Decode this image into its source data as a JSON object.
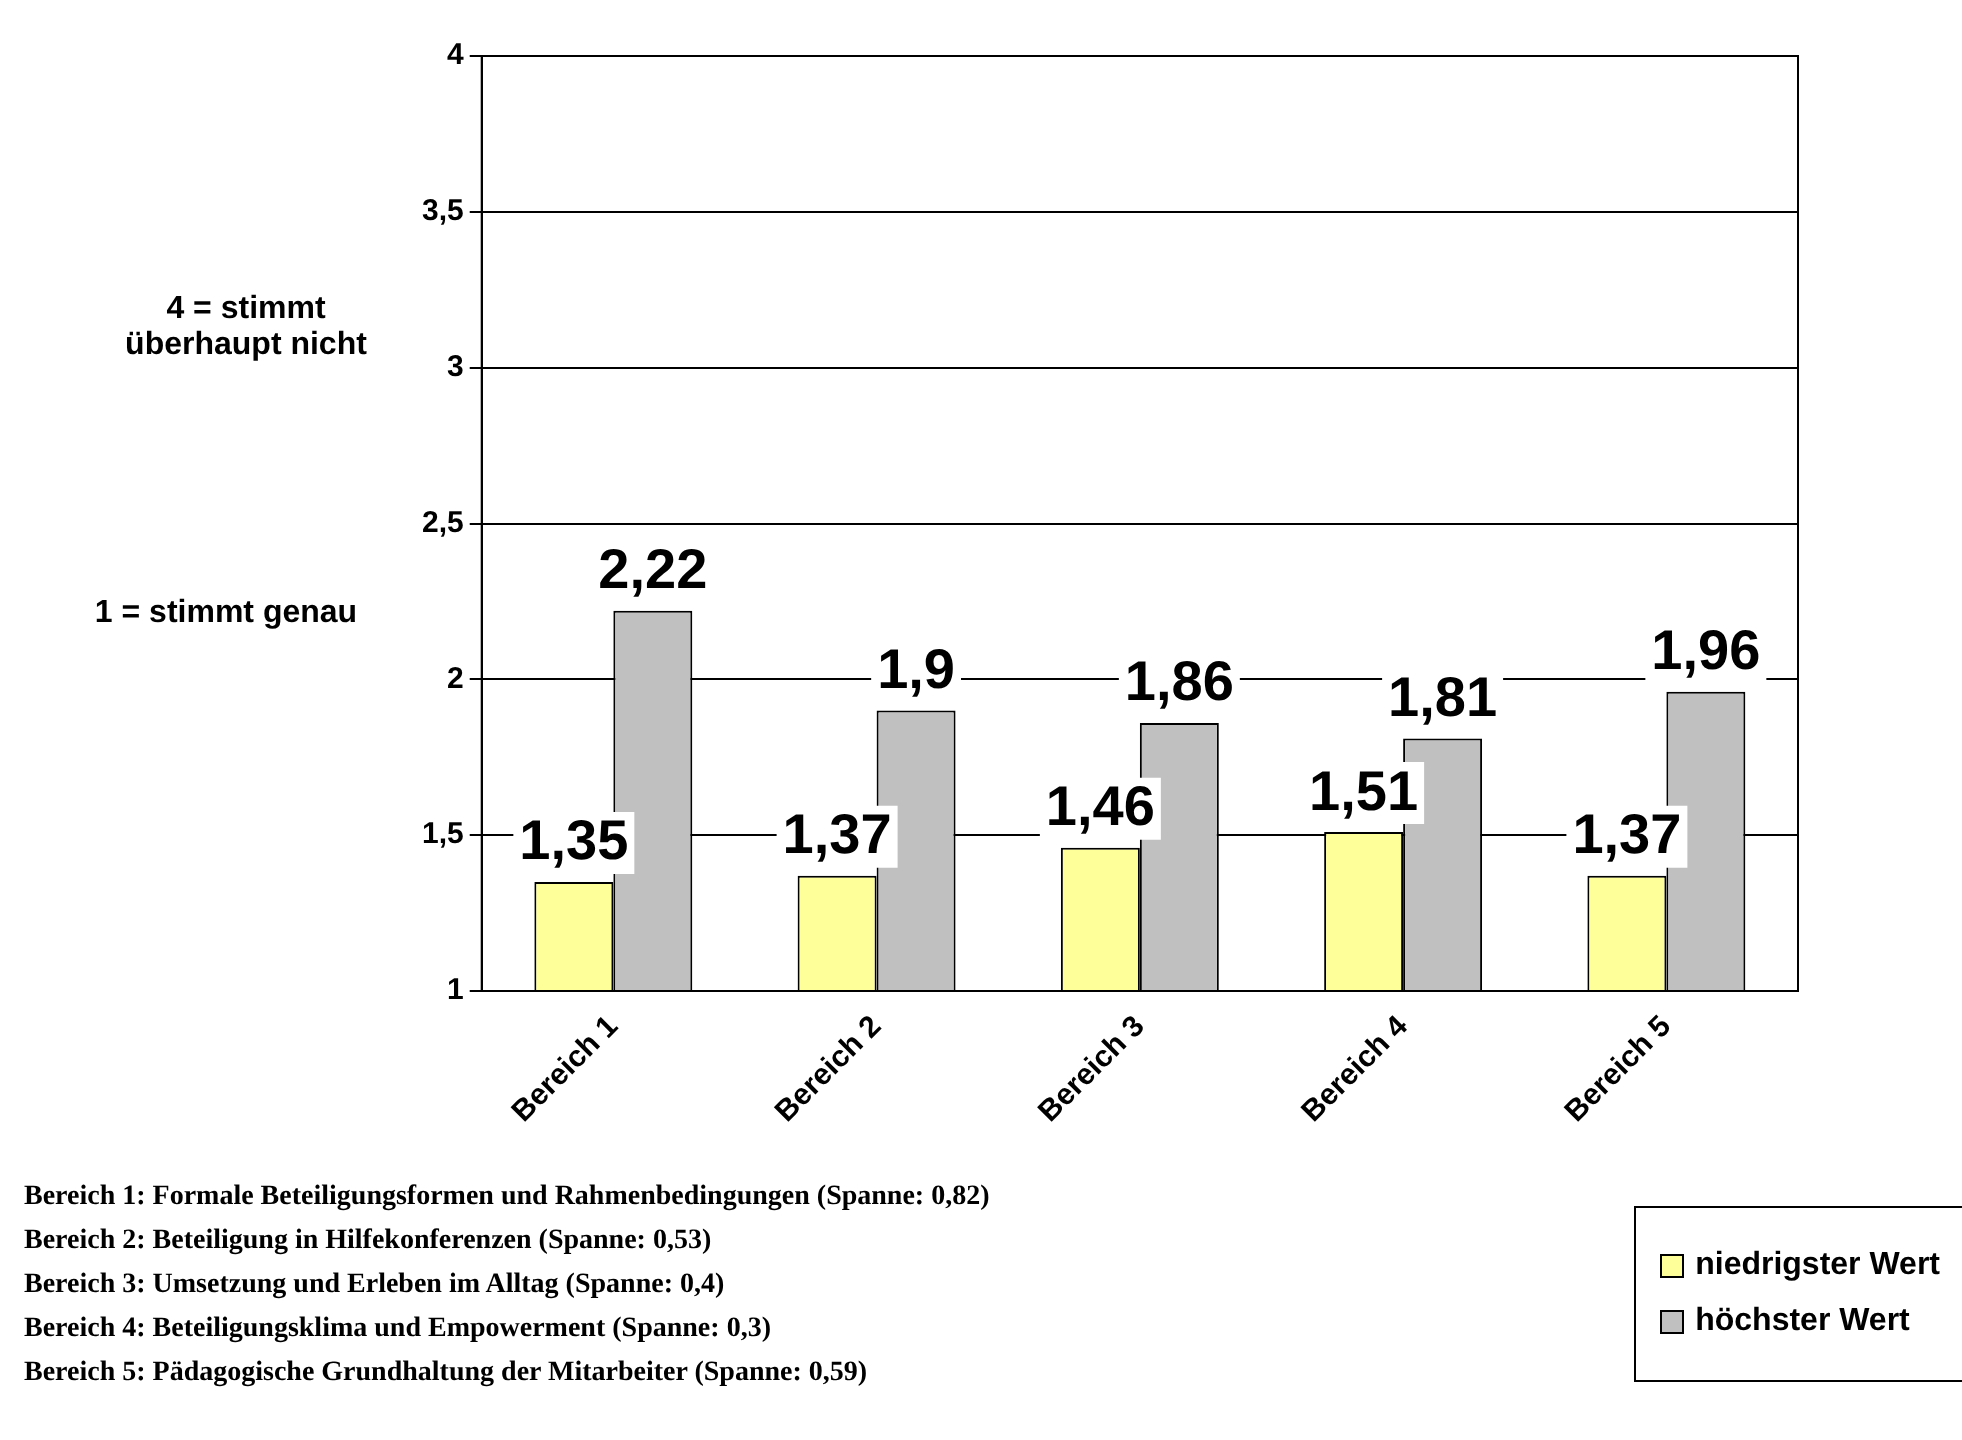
{
  "chart_data": {
    "type": "bar",
    "categories": [
      "Bereich 1",
      "Bereich 2",
      "Bereich 3",
      "Bereich 4",
      "Bereich 5"
    ],
    "series": [
      {
        "name": "niedrigster Wert",
        "color": "#ffff99",
        "values": [
          1.35,
          1.37,
          1.46,
          1.51,
          1.37
        ],
        "value_labels": [
          "1,35",
          "1,37",
          "1,46",
          "1,51",
          "1,37"
        ]
      },
      {
        "name": "höchster Wert",
        "color": "#c0c0c0",
        "values": [
          2.22,
          1.9,
          1.86,
          1.81,
          1.96
        ],
        "value_labels": [
          "2,22",
          "1,9",
          "1,86",
          "1,81",
          "1,96"
        ]
      }
    ],
    "ylim": [
      1,
      4
    ],
    "yticks": [
      1,
      {
        "value": 1.5,
        "label": "1,5"
      },
      2,
      {
        "value": 2.5,
        "label": "2,5"
      },
      3,
      {
        "value": 3.5,
        "label": "3,5"
      },
      4
    ],
    "grid": "y",
    "legend": "bottom right",
    "annotations": [
      "4 = stimmt überhaupt nicht",
      "1 = stimmt genau",
      "Bereich 1: Formale Beteiligungsformen und Rahmenbedingungen (Spanne: 0,82)",
      "Bereich 2: Beteiligung in Hilfekonferenzen (Spanne: 0,53)",
      "Bereich 3: Umsetzung und Erleben im Alltag (Spanne: 0,4)",
      "Bereich 4: Beteiligungsklima und Empowerment (Spanne: 0,3)",
      "Bereich 5: Pädagogische Grundhaltung der Mitarbeiter (Spanne: 0,59)"
    ]
  }
}
